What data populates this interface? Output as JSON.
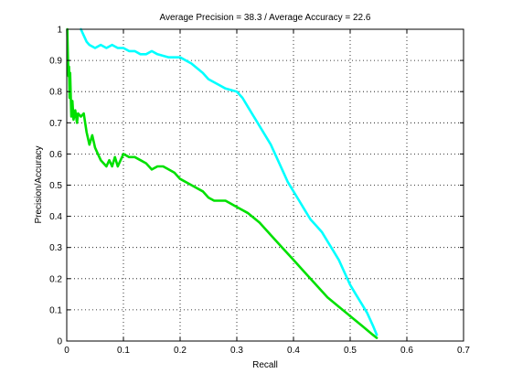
{
  "chart_data": {
    "type": "line",
    "title": "Average Precision = 38.3 / Average Accuracy = 22.6",
    "xlabel": "Recall",
    "ylabel": "Precision/Accuracy",
    "xlim": [
      0,
      0.7
    ],
    "ylim": [
      0,
      1
    ],
    "xticks": [
      0,
      0.1,
      0.2,
      0.3,
      0.4,
      0.5,
      0.6,
      0.7
    ],
    "yticks": [
      0,
      0.1,
      0.2,
      0.3,
      0.4,
      0.5,
      0.6,
      0.7,
      0.8,
      0.9,
      1
    ],
    "xtick_labels": [
      "0",
      "0.1",
      "0.2",
      "0.3",
      "0.4",
      "0.5",
      "0.6",
      "0.7"
    ],
    "ytick_labels": [
      "0",
      "0.1",
      "0.2",
      "0.3",
      "0.4",
      "0.5",
      "0.6",
      "0.7",
      "0.8",
      "0.9",
      "1"
    ],
    "grid": true,
    "series": [
      {
        "color": "#00ffff",
        "x": [
          0.025,
          0.03,
          0.035,
          0.04,
          0.05,
          0.06,
          0.07,
          0.08,
          0.09,
          0.1,
          0.11,
          0.12,
          0.13,
          0.14,
          0.15,
          0.16,
          0.18,
          0.2,
          0.22,
          0.24,
          0.25,
          0.27,
          0.28,
          0.3,
          0.31,
          0.32,
          0.33,
          0.34,
          0.35,
          0.36,
          0.37,
          0.38,
          0.39,
          0.4,
          0.41,
          0.42,
          0.43,
          0.44,
          0.45,
          0.46,
          0.47,
          0.48,
          0.49,
          0.5,
          0.51,
          0.52,
          0.53,
          0.54,
          0.547
        ],
        "y": [
          1.0,
          0.98,
          0.96,
          0.95,
          0.94,
          0.95,
          0.94,
          0.95,
          0.94,
          0.94,
          0.93,
          0.93,
          0.92,
          0.92,
          0.93,
          0.92,
          0.91,
          0.91,
          0.89,
          0.86,
          0.84,
          0.82,
          0.81,
          0.8,
          0.78,
          0.75,
          0.72,
          0.69,
          0.66,
          0.63,
          0.59,
          0.55,
          0.51,
          0.48,
          0.45,
          0.42,
          0.39,
          0.37,
          0.35,
          0.32,
          0.29,
          0.26,
          0.22,
          0.18,
          0.15,
          0.12,
          0.09,
          0.05,
          0.02
        ]
      },
      {
        "color": "#00e000",
        "x": [
          0.001,
          0.002,
          0.003,
          0.004,
          0.005,
          0.006,
          0.008,
          0.01,
          0.012,
          0.015,
          0.018,
          0.02,
          0.025,
          0.03,
          0.035,
          0.04,
          0.045,
          0.05,
          0.055,
          0.06,
          0.07,
          0.075,
          0.08,
          0.085,
          0.09,
          0.1,
          0.11,
          0.12,
          0.13,
          0.14,
          0.15,
          0.16,
          0.17,
          0.18,
          0.19,
          0.2,
          0.22,
          0.24,
          0.25,
          0.26,
          0.28,
          0.3,
          0.32,
          0.34,
          0.35,
          0.36,
          0.38,
          0.4,
          0.42,
          0.44,
          0.46,
          0.48,
          0.5,
          0.52,
          0.54,
          0.547
        ],
        "y": [
          1.0,
          0.92,
          0.85,
          0.88,
          0.78,
          0.86,
          0.72,
          0.77,
          0.71,
          0.74,
          0.7,
          0.73,
          0.72,
          0.73,
          0.67,
          0.63,
          0.66,
          0.62,
          0.6,
          0.58,
          0.56,
          0.58,
          0.56,
          0.59,
          0.56,
          0.6,
          0.59,
          0.59,
          0.58,
          0.57,
          0.55,
          0.56,
          0.56,
          0.55,
          0.54,
          0.52,
          0.5,
          0.48,
          0.46,
          0.45,
          0.45,
          0.43,
          0.41,
          0.38,
          0.36,
          0.34,
          0.3,
          0.26,
          0.22,
          0.18,
          0.14,
          0.11,
          0.08,
          0.05,
          0.02,
          0.01
        ]
      }
    ]
  }
}
